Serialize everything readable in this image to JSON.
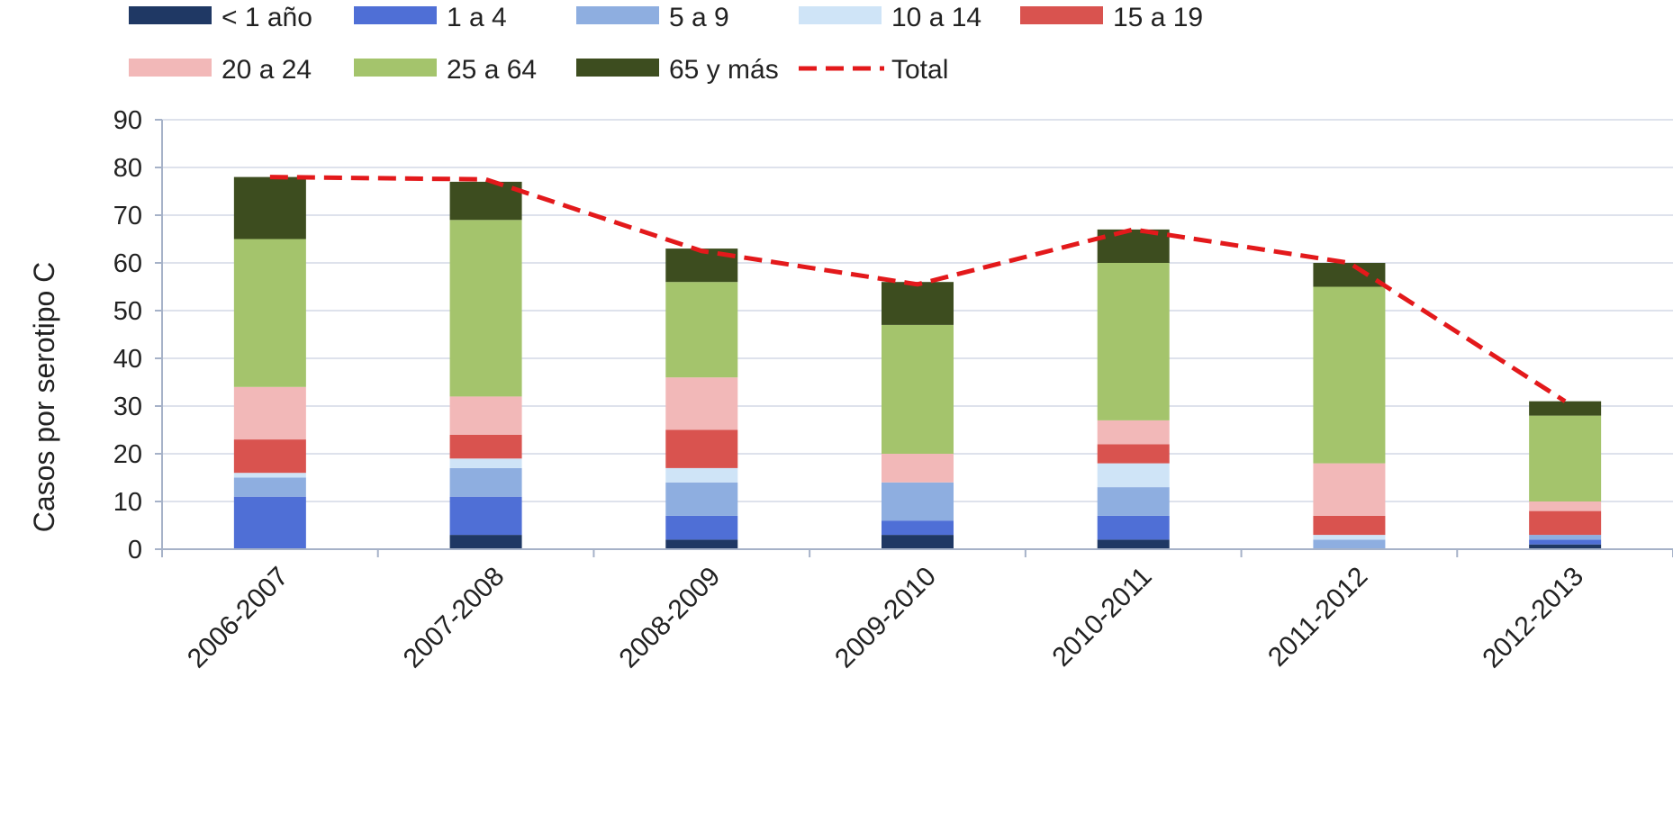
{
  "chart_data": {
    "type": "bar",
    "stacked": true,
    "title": "",
    "xlabel": "",
    "ylabel": "Casos por  serotipo C",
    "ylim": [
      0,
      90
    ],
    "yticks": [
      0,
      10,
      20,
      30,
      40,
      50,
      60,
      70,
      80,
      90
    ],
    "grid": true,
    "legend_position": "top",
    "categories": [
      "2006-2007",
      "2007-2008",
      "2008-2009",
      "2009-2010",
      "2010-2011",
      "2011-2012",
      "2012-2013"
    ],
    "series": [
      {
        "name": "< 1 año",
        "color": "#1f3864",
        "values": [
          0,
          3,
          2,
          3,
          2,
          0,
          1
        ]
      },
      {
        "name": "1 a 4",
        "color": "#4f6fd6",
        "values": [
          11,
          8,
          5,
          3,
          5,
          0,
          1
        ]
      },
      {
        "name": "5 a 9",
        "color": "#8eaee0",
        "values": [
          4,
          6,
          7,
          8,
          6,
          2,
          1
        ]
      },
      {
        "name": "10 a 14",
        "color": "#cfe4f7",
        "values": [
          1,
          2,
          3,
          0,
          5,
          1,
          0
        ]
      },
      {
        "name": "15 a 19",
        "color": "#d9534f",
        "values": [
          7,
          5,
          8,
          0,
          4,
          4,
          5
        ]
      },
      {
        "name": "20 a 24",
        "color": "#f2b8b8",
        "values": [
          11,
          8,
          11,
          6,
          5,
          11,
          2
        ]
      },
      {
        "name": "25 a 64",
        "color": "#a4c46c",
        "values": [
          31,
          37,
          20,
          27,
          33,
          37,
          18
        ]
      },
      {
        "name": "65 y más",
        "color": "#3d4d1f",
        "values": [
          13,
          8,
          7,
          9,
          7,
          5,
          3
        ]
      }
    ],
    "total": {
      "name": "Total",
      "color": "#e3191b",
      "values": [
        78,
        77.5,
        62.5,
        55.5,
        67,
        60,
        31
      ]
    }
  }
}
